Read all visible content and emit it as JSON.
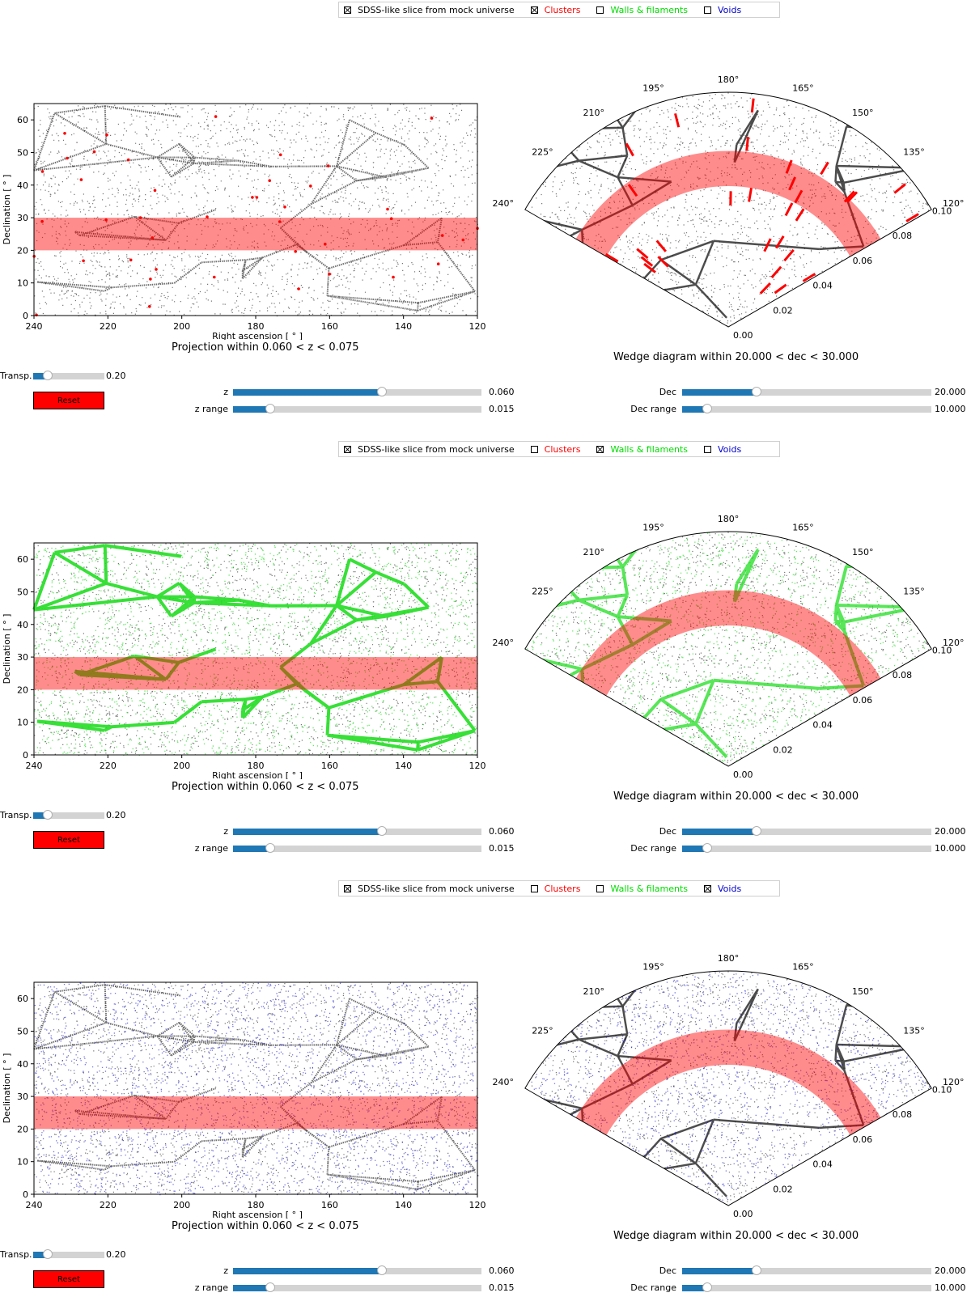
{
  "legend": {
    "items": [
      {
        "label": "SDSS-like slice from mock universe",
        "color": "#000000"
      },
      {
        "label": "Clusters",
        "color": "#ff0000"
      },
      {
        "label": "Walls & filaments",
        "color": "#00dd00"
      },
      {
        "label": "Voids",
        "color": "#0000cc"
      }
    ]
  },
  "projection": {
    "ylabel": "Declination [$^\\circ$]",
    "ylabel_display": "Declination [ ° ]",
    "xlabel_display": "Right ascension [ ° ]",
    "xticks": [
      "240",
      "220",
      "200",
      "180",
      "160",
      "140",
      "120"
    ],
    "yticks": [
      "0",
      "10",
      "20",
      "30",
      "40",
      "50",
      "60"
    ],
    "title": "Projection within 0.060 < z < 0.075"
  },
  "wedge": {
    "angle_ticks": [
      "240°",
      "225°",
      "210°",
      "195°",
      "180°",
      "165°",
      "150°",
      "135°",
      "120°"
    ],
    "radial_ticks": [
      "0.00",
      "0.02",
      "0.04",
      "0.06",
      "0.08",
      "0.10"
    ],
    "title": "Wedge diagram within 20.000 < dec < 30.000"
  },
  "sliders": {
    "transp": {
      "label": "Transp.",
      "value": "0.20",
      "fraction": 0.2
    },
    "z": {
      "label": "z",
      "value": "0.060",
      "fraction": 0.6
    },
    "zrange": {
      "label": "z range",
      "value": "0.015",
      "fraction": 0.15
    },
    "dec": {
      "label": "Dec",
      "value": "20.000",
      "fraction": 0.3
    },
    "decrange": {
      "label": "Dec range",
      "value": "10.000",
      "fraction": 0.1
    }
  },
  "reset_label": "Reset",
  "panels": [
    {
      "name": "clusters-panel",
      "checks": [
        true,
        true,
        false,
        false
      ],
      "overlay": "clusters"
    },
    {
      "name": "walls-panel",
      "checks": [
        true,
        false,
        true,
        false
      ],
      "overlay": "walls"
    },
    {
      "name": "voids-panel",
      "checks": [
        true,
        false,
        false,
        true
      ],
      "overlay": "voids"
    }
  ],
  "chart_data": [
    {
      "type": "scatter",
      "title": "Projection within 0.060 < z < 0.075",
      "xlabel": "Right ascension [ ° ]",
      "ylabel": "Declination [ ° ]",
      "xlim": [
        240,
        120
      ],
      "ylim": [
        0,
        65
      ],
      "highlight_band": {
        "axis": "y",
        "range": [
          20,
          30
        ],
        "color": "#ff0000"
      }
    },
    {
      "type": "scatter",
      "title": "Wedge diagram within 20.000 < dec < 30.000",
      "theta_range_deg": [
        120,
        240
      ],
      "r_range": [
        0,
        0.1
      ],
      "highlight_band": {
        "axis": "r",
        "range": [
          0.06,
          0.075
        ],
        "color": "#ff0000"
      }
    }
  ]
}
